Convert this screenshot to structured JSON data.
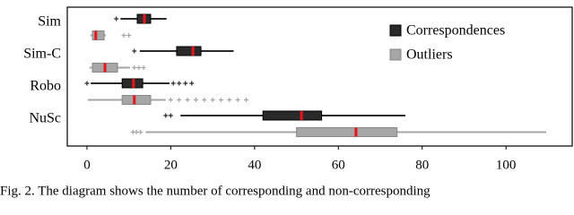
{
  "chart_data": {
    "type": "boxplot",
    "orientation": "horizontal",
    "categories": [
      "Sim",
      "Sim-C",
      "Robo",
      "NuSc"
    ],
    "xlim": [
      -4.7,
      115.8
    ],
    "xticks": [
      0,
      20,
      40,
      60,
      80,
      100
    ],
    "median_color": "#e8141b",
    "legend": "top-right",
    "series": [
      {
        "name": "Correspondences",
        "color": "#2a2a2a",
        "boxes": [
          {
            "whislo": 8,
            "q1": 12,
            "med": 13.7,
            "q3": 15.2,
            "whishi": 19,
            "fliers": [
              7
            ]
          },
          {
            "whislo": 12.6,
            "q1": 21.4,
            "med": 25.3,
            "q3": 27.2,
            "whishi": 35,
            "fliers": [
              11.3
            ]
          },
          {
            "whislo": 0.9,
            "q1": 8.4,
            "med": 11.1,
            "q3": 13.3,
            "whishi": 19.7,
            "fliers": [
              0,
              20.6,
              22,
              23.5,
              25
            ]
          },
          {
            "whislo": 22.3,
            "q1": 42,
            "med": 51.2,
            "q3": 56,
            "whishi": 76,
            "fliers": [
              18.8,
              20
            ]
          }
        ]
      },
      {
        "name": "Outliers",
        "color": "#a6a6a6",
        "boxes": [
          {
            "whislo": 0.8,
            "q1": 1.3,
            "med": 2.1,
            "q3": 4.1,
            "whishi": 4.5,
            "fliers": [
              8.8,
              10
            ]
          },
          {
            "whislo": 0.6,
            "q1": 1.3,
            "med": 4.3,
            "q3": 7.3,
            "whishi": 10.3,
            "fliers": [
              11.3,
              12.4,
              13.5
            ]
          },
          {
            "whislo": 0.2,
            "q1": 8.4,
            "med": 11.3,
            "q3": 15.2,
            "whishi": 18.8,
            "fliers": [
              20,
              22,
              24,
              26,
              28,
              30,
              32,
              34,
              36,
              38
            ]
          },
          {
            "whislo": 14,
            "q1": 50,
            "med": 64.2,
            "q3": 74,
            "whishi": 109.6,
            "fliers": [
              11,
              11.8,
              12.8
            ]
          }
        ]
      }
    ],
    "caption": "Fig. 2.  The diagram shows the number of corresponding and non-corresponding"
  }
}
